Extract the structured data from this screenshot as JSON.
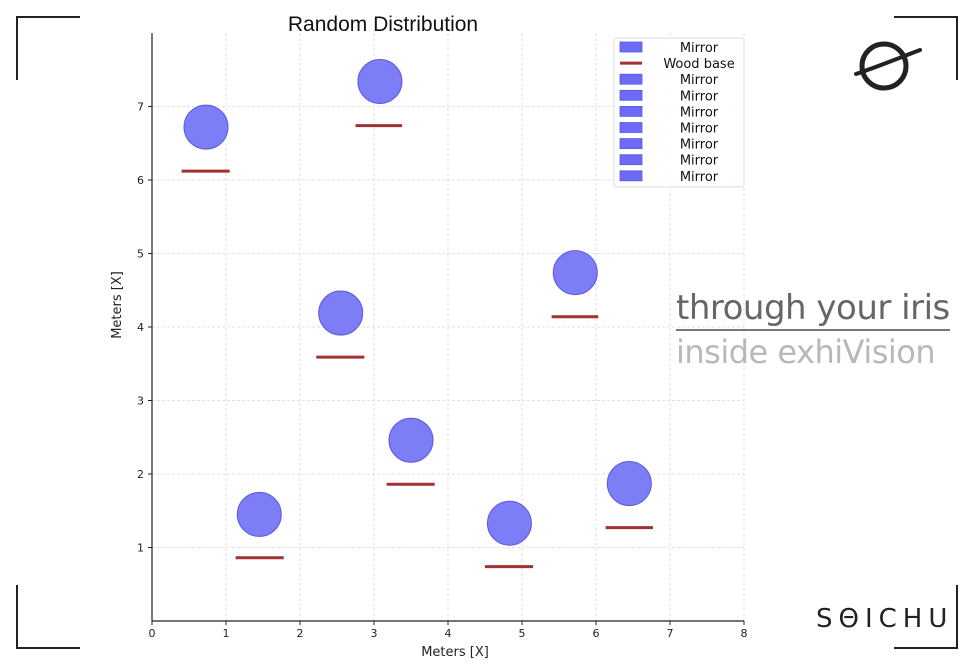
{
  "brand": {
    "tagline_primary": "through your iris",
    "tagline_secondary": "inside exhiVision",
    "wordmark": "SΘICHU",
    "logo_icon": "theta-swoosh-icon"
  },
  "chart_data": {
    "type": "scatter",
    "title": "Random Distribution",
    "xlabel": "Meters [X]",
    "ylabel": "Meters [X]",
    "xlim": [
      0,
      8
    ],
    "ylim": [
      0,
      8
    ],
    "xticks": [
      0,
      1,
      2,
      3,
      4,
      5,
      6,
      7,
      8
    ],
    "yticks": [
      1,
      2,
      3,
      4,
      5,
      6,
      7
    ],
    "grid": true,
    "legend_position": "top-right",
    "legend": [
      "Mirror",
      "Wood base",
      "Mirror",
      "Mirror",
      "Mirror",
      "Mirror",
      "Mirror",
      "Mirror",
      "Mirror"
    ],
    "colors": {
      "mirror": "#6b6bf5",
      "mirror_edge": "#5a5ae0",
      "wood_base": "#a03232",
      "grid": "#d9d9d9"
    },
    "series": [
      {
        "name": "Mirror",
        "kind": "circle",
        "points": [
          {
            "x": 0.73,
            "y": 6.72
          },
          {
            "x": 3.08,
            "y": 7.34
          },
          {
            "x": 2.55,
            "y": 4.19
          },
          {
            "x": 5.72,
            "y": 4.74
          },
          {
            "x": 3.5,
            "y": 2.46
          },
          {
            "x": 1.45,
            "y": 1.45
          },
          {
            "x": 4.83,
            "y": 1.33
          },
          {
            "x": 6.45,
            "y": 1.87
          }
        ]
      },
      {
        "name": "Wood base",
        "kind": "segment",
        "segments": [
          {
            "x0": 0.4,
            "x1": 1.05,
            "y": 6.12
          },
          {
            "x0": 2.75,
            "x1": 3.38,
            "y": 6.74
          },
          {
            "x0": 2.22,
            "x1": 2.87,
            "y": 3.59
          },
          {
            "x0": 5.4,
            "x1": 6.03,
            "y": 4.14
          },
          {
            "x0": 3.17,
            "x1": 3.82,
            "y": 1.86
          },
          {
            "x0": 1.13,
            "x1": 1.78,
            "y": 0.86
          },
          {
            "x0": 4.5,
            "x1": 5.15,
            "y": 0.74
          },
          {
            "x0": 6.13,
            "x1": 6.77,
            "y": 1.27
          }
        ]
      }
    ]
  }
}
